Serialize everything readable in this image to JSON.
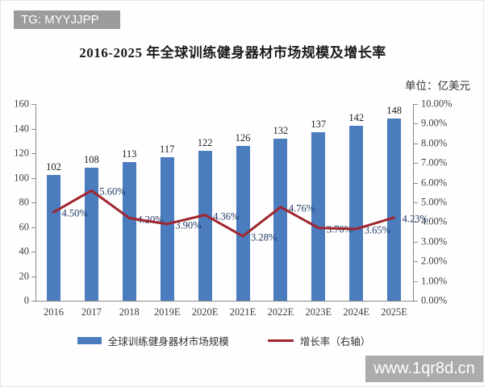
{
  "banner": {
    "text": "TG: MYYJJPP"
  },
  "title": "2016-2025 年全球训练健身器材市场规模及增长率",
  "unit_label": "单位：亿美元",
  "watermark": "www.1qr8d.cn",
  "colors": {
    "bar": "#4a7cbe",
    "line": "#a0262e",
    "navy": "#1f3864",
    "banner-bg": "#9c9c9c",
    "watermark-bg": "#acacac"
  },
  "chart_data": {
    "type": "bar",
    "title": "2016-2025 年全球训练健身器材市场规模及增长率",
    "unit": "单位：亿美元",
    "categories": [
      "2016",
      "2017",
      "2018",
      "2019E",
      "2020E",
      "2021E",
      "2022E",
      "2023E",
      "2024E",
      "2025E"
    ],
    "series": [
      {
        "name": "全球训练健身器材市场规模",
        "type": "bar",
        "axis": "left",
        "values": [
          102,
          108,
          113,
          117,
          122,
          126,
          132,
          137,
          142,
          148
        ]
      },
      {
        "name": "增长率（右轴）",
        "type": "line",
        "axis": "right",
        "values": [
          4.5,
          5.6,
          4.2,
          3.9,
          4.36,
          3.28,
          4.76,
          3.7,
          3.65,
          4.23
        ],
        "point_labels": [
          "4.50%",
          "5.60%",
          "4.20%",
          "3.90%",
          "4.36%",
          "3.28%",
          "4.76%",
          "3.70%",
          "3.65%",
          "4.23%"
        ]
      }
    ],
    "left_axis": {
      "min": 0,
      "max": 160,
      "step": 20,
      "ticks": [
        "0",
        "20",
        "40",
        "60",
        "80",
        "100",
        "120",
        "140",
        "160"
      ]
    },
    "right_axis": {
      "min": 0,
      "max": 10,
      "step": 1,
      "ticks": [
        "0.00%",
        "1.00%",
        "2.00%",
        "3.00%",
        "4.00%",
        "5.00%",
        "6.00%",
        "7.00%",
        "8.00%",
        "9.00%",
        "10.00%"
      ]
    },
    "grid": false,
    "legend_position": "bottom"
  }
}
